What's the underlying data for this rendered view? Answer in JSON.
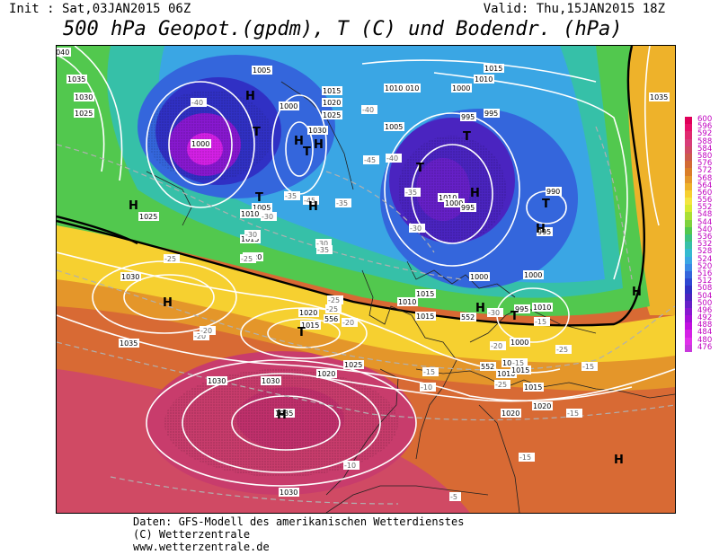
{
  "header": {
    "init": "Init : Sat,03JAN2015 06Z",
    "valid": "Valid: Thu,15JAN2015 18Z",
    "title": "500 hPa Geopot.(gpdm), T (C) und Bodendr. (hPa)"
  },
  "legend": {
    "values": [
      "600",
      "596",
      "592",
      "588",
      "584",
      "580",
      "576",
      "572",
      "568",
      "564",
      "560",
      "556",
      "552",
      "548",
      "544",
      "540",
      "536",
      "532",
      "528",
      "524",
      "520",
      "516",
      "512",
      "508",
      "504",
      "500",
      "496",
      "492",
      "488",
      "484",
      "480",
      "476"
    ],
    "colors": [
      "#e0005a",
      "#e8106a",
      "#e02a70",
      "#d83c78",
      "#d04a64",
      "#cc5a4c",
      "#d26a34",
      "#da7e28",
      "#e4962a",
      "#eeb22a",
      "#f6d030",
      "#f4e640",
      "#d8ea30",
      "#aadf34",
      "#7ed23e",
      "#52c84e",
      "#3cc27e",
      "#36c0a8",
      "#34bad0",
      "#3aa6e4",
      "#3a8ae6",
      "#3466dc",
      "#2e48d2",
      "#3030c4",
      "#4a24c0",
      "#6620c8",
      "#8818d0",
      "#a410d8",
      "#c010e0",
      "#d420e6",
      "#e030ea",
      "#c838dc"
    ]
  },
  "map": {
    "pressure_labels": [
      "1040",
      "1035",
      "1030",
      "1025",
      "1005",
      "1015",
      "1020",
      "1025",
      "1030",
      "1000",
      "1000",
      "1005",
      "1010",
      "1015",
      "1020",
      "1010",
      "1000",
      "995",
      "1005",
      "1010",
      "995",
      "995",
      "990",
      "995",
      "1000",
      "1000",
      "995",
      "1010",
      "1015",
      "1010",
      "1015",
      "1020",
      "1015",
      "1025",
      "1030",
      "1030",
      "1035",
      "1020",
      "1030",
      "1025",
      "1030",
      "1035",
      "1020",
      "1010",
      "1005",
      "1015",
      "1000",
      "1010",
      "1015",
      "1000",
      "1010",
      "1015",
      "1020",
      "1035"
    ],
    "temp_labels": [
      "-40",
      "-45",
      "-40",
      "-35",
      "-30",
      "-25",
      "-20",
      "-25",
      "-30",
      "-35",
      "-40",
      "-35",
      "-30",
      "-25",
      "-20",
      "-15",
      "-15",
      "-10",
      "-15",
      "-15",
      "-20",
      "-25",
      "-15",
      "-15",
      "-10",
      "-5",
      "-30",
      "-25",
      "-20",
      "-15",
      "-25",
      "-30",
      "-35",
      "-45"
    ],
    "geo_labels": [
      "556",
      "552",
      "552"
    ],
    "highs": [
      "H",
      "H",
      "H",
      "H",
      "H",
      "H",
      "H",
      "H",
      "H",
      "H",
      "H",
      "H"
    ],
    "lows": [
      "T",
      "T",
      "T",
      "T",
      "T",
      "T",
      "T",
      "T"
    ]
  },
  "footer": {
    "line1": "Daten: GFS-Modell des amerikanischen Wetterdienstes",
    "line2": "(C) Wetterzentrale",
    "line3": "www.wetterzentrale.de"
  }
}
